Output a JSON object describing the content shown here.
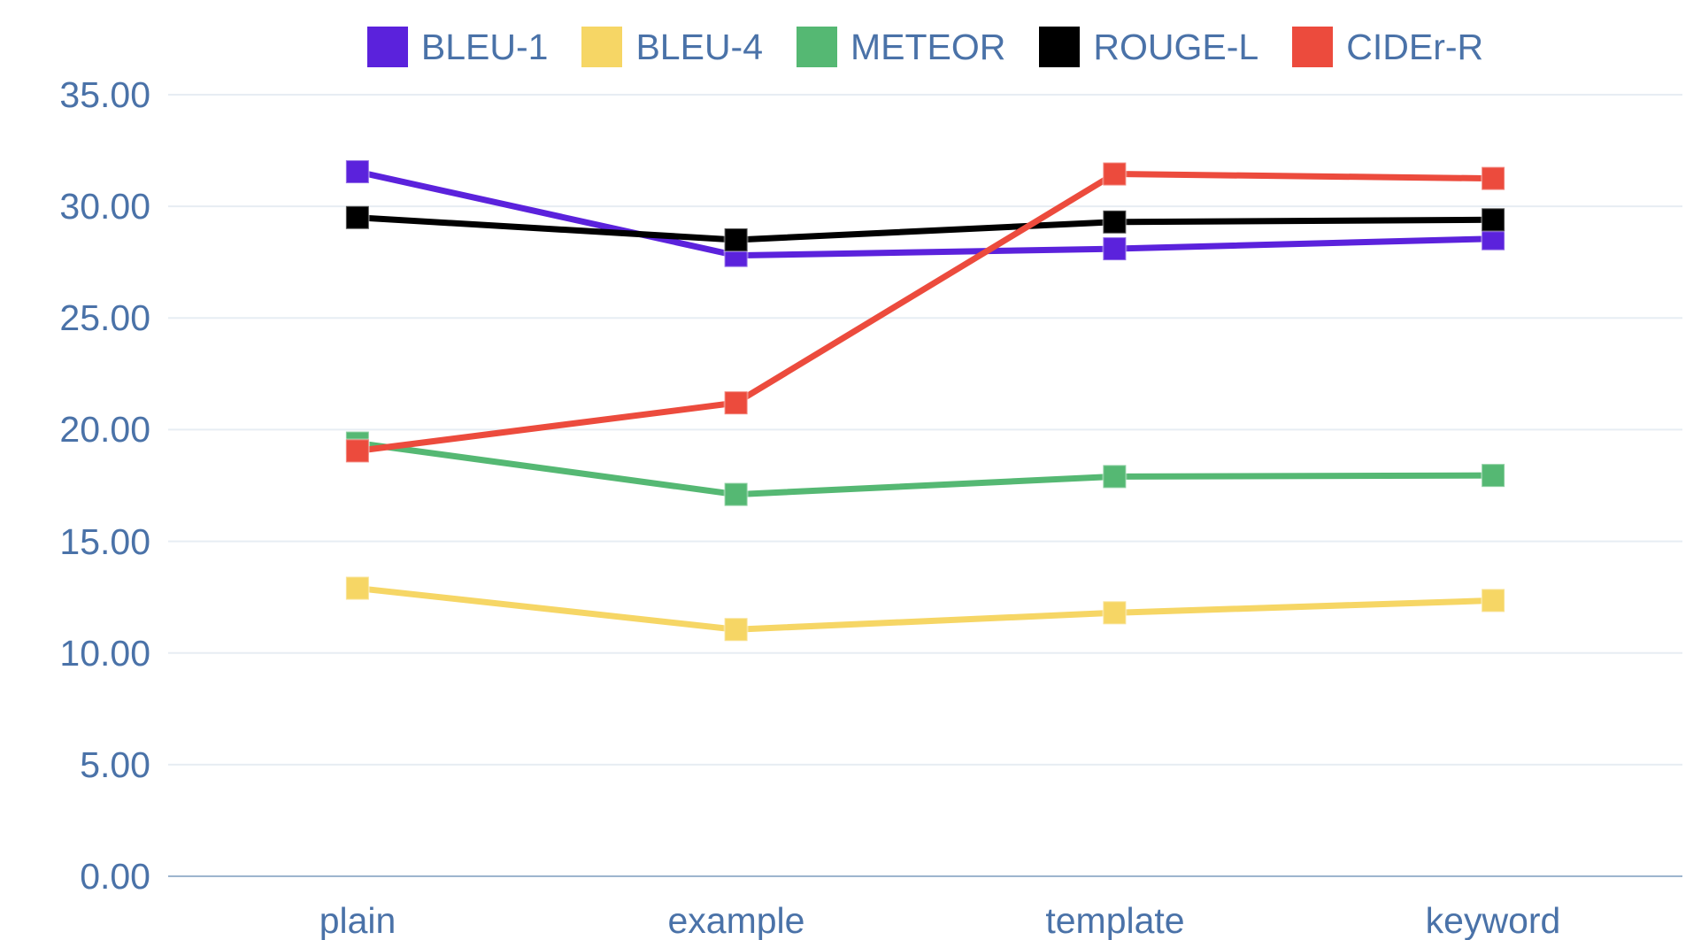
{
  "chart_data": {
    "type": "line",
    "title": "",
    "categories": [
      "plain",
      "example",
      "template",
      "keyword"
    ],
    "series": [
      {
        "name": "BLEU-1",
        "color": "#5B22DC",
        "values": [
          31.55,
          27.8,
          28.1,
          28.55
        ]
      },
      {
        "name": "BLEU-4",
        "color": "#F6D665",
        "values": [
          12.9,
          11.05,
          11.8,
          12.35
        ]
      },
      {
        "name": "METEOR",
        "color": "#55B873",
        "values": [
          19.4,
          17.1,
          17.9,
          17.95
        ]
      },
      {
        "name": "ROUGE-L",
        "color": "#000000",
        "values": [
          29.5,
          28.5,
          29.3,
          29.4
        ]
      },
      {
        "name": "CIDEr-R",
        "color": "#EC4B3D",
        "values": [
          19.05,
          21.2,
          31.45,
          31.25
        ]
      }
    ],
    "y_ticks": [
      "35.00",
      "30.00",
      "25.00",
      "20.00",
      "15.00",
      "10.00",
      "5.00",
      "0.00"
    ],
    "ylim": [
      0,
      35
    ],
    "y_step": 5,
    "grid": true,
    "legend_position": "top",
    "marker": "square",
    "colors": {
      "axis_text": "#4A72A8",
      "gridline": "#E7EDF3",
      "axis_line": "#9DB5CE",
      "background": "#FFFFFF"
    }
  }
}
